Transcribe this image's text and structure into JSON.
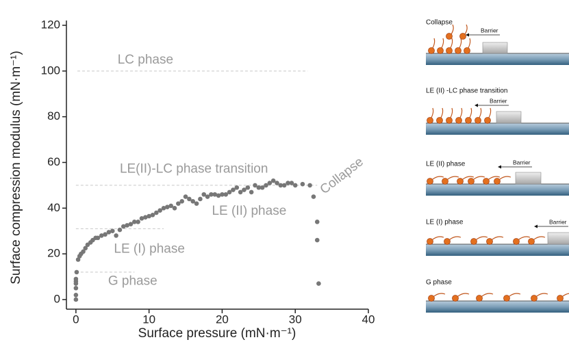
{
  "chart_data": {
    "type": "scatter",
    "x_label": "Surface pressure (mN·m⁻¹)",
    "y_label": "Surface compression modulus (mN·m⁻¹)",
    "xlim": [
      -1.3,
      40
    ],
    "xticks": [
      0,
      10,
      20,
      30,
      40
    ],
    "ylim": [
      -4.2,
      120
    ],
    "yticks": [
      0,
      20,
      40,
      60,
      80,
      100,
      120
    ],
    "color": "#777777",
    "x": [
      0,
      0,
      0,
      0,
      0,
      0,
      0.1,
      0.3,
      0.5,
      0.7,
      1,
      1.3,
      1.6,
      2,
      2.3,
      2.7,
      3,
      3.5,
      4,
      4.5,
      5,
      5.5,
      6,
      6.5,
      7,
      7.5,
      8,
      8.5,
      9,
      9.5,
      10,
      10.5,
      11,
      11.5,
      12,
      12.5,
      13,
      13.5,
      14,
      14.5,
      15,
      15.5,
      16,
      16.5,
      17,
      17.5,
      18,
      18.5,
      19,
      19.5,
      20,
      20.5,
      21,
      21.5,
      22,
      22.5,
      23,
      23.5,
      24,
      24.5,
      25,
      25.5,
      26,
      26.5,
      27,
      27.5,
      28,
      28.5,
      29,
      29.5,
      30,
      31,
      32,
      32.5,
      33,
      33,
      33.2
    ],
    "values": [
      0,
      2,
      5,
      7,
      8,
      9,
      12,
      17.5,
      19,
      20,
      21,
      22.5,
      24,
      25,
      26,
      27,
      27,
      28,
      28.5,
      29.5,
      30,
      28,
      30.5,
      32,
      32.5,
      33,
      34,
      34,
      35.5,
      36,
      36.5,
      37,
      38,
      39,
      40,
      40.5,
      41,
      40,
      42,
      43,
      45,
      44,
      43,
      42,
      44,
      46,
      45,
      46,
      46,
      45.5,
      46,
      46,
      47,
      48,
      49,
      47,
      48,
      49,
      47,
      50,
      49,
      49,
      50,
      51,
      52,
      51,
      50,
      50,
      51,
      51,
      50,
      50.5,
      50,
      45,
      34,
      26,
      7
    ],
    "reference_lines": [
      {
        "y": 100,
        "x0": 0.2,
        "x1": 31.7
      },
      {
        "y": 50,
        "x0": 0,
        "x1": 33
      },
      {
        "y": 31,
        "x0": 0,
        "x1": 12
      },
      {
        "y": 12,
        "x0": 0,
        "x1": 8
      }
    ],
    "annotations": [
      "LC phase",
      "LE(II)-LC phase transition",
      "LE (I) phase",
      "G phase",
      "LE (II) phase",
      "Collapse"
    ]
  },
  "diagram": {
    "panels": [
      {
        "title": "Collapse",
        "barrier": "Barrier"
      },
      {
        "title": "LE (II) -LC phase transition",
        "barrier": "Barrier"
      },
      {
        "title": "LE (II) phase",
        "barrier": "Barrier"
      },
      {
        "title": "LE (I) phase",
        "barrier": "Barrier"
      },
      {
        "title": "G phase"
      }
    ]
  }
}
